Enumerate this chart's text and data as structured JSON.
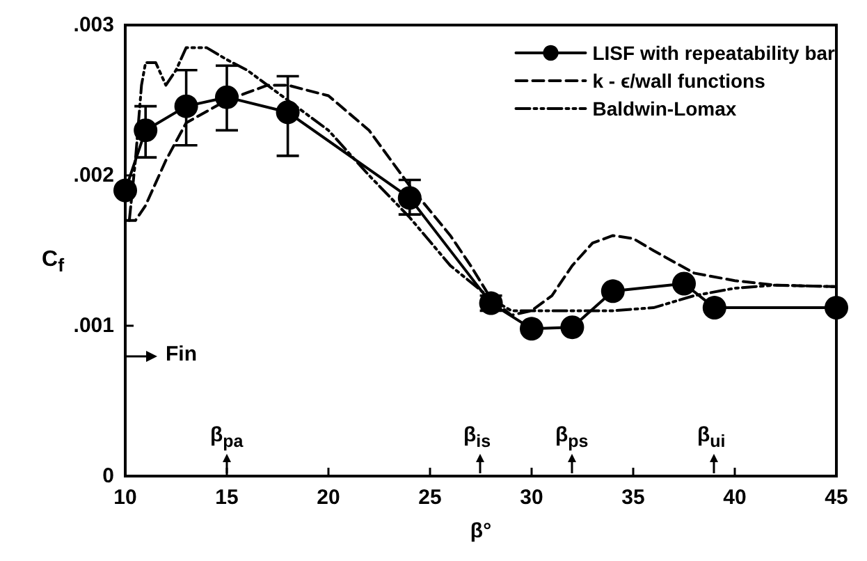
{
  "chart_data": {
    "type": "line",
    "xlabel": "β°",
    "ylabel": "C$_{f}$",
    "xlim": [
      10,
      45
    ],
    "xticks": [
      10,
      15,
      20,
      25,
      30,
      35,
      40,
      45
    ],
    "ylim": [
      0,
      0.003
    ],
    "yticks": [
      0,
      {
        "value": 0.001,
        "label": ".001"
      },
      {
        "value": 0.002,
        "label": ".002"
      },
      {
        "value": 0.003,
        "label": ".003"
      }
    ],
    "grid": false,
    "legend": "top right",
    "series": [
      {
        "name": "LISF with repeatability bar",
        "color": "#000000",
        "marker": "circle",
        "line_style": "solid",
        "x": [
          10,
          11,
          13,
          15,
          18,
          24,
          28,
          30,
          32,
          34,
          37.5,
          39,
          45
        ],
        "values": [
          0.0019,
          0.0023,
          0.00246,
          0.00252,
          0.00242,
          0.00185,
          0.00115,
          0.00098,
          0.00099,
          0.00123,
          0.00128,
          0.00112,
          0.00112
        ],
        "errors": [
          null,
          [
            0.00212,
            0.00246
          ],
          [
            0.0022,
            0.0027
          ],
          [
            0.0023,
            0.00273
          ],
          [
            0.00213,
            0.00266
          ],
          [
            0.00174,
            0.00197
          ],
          [
            0.0011,
            0.0012
          ],
          null,
          null,
          null,
          null,
          null,
          null
        ]
      },
      {
        "name": "k - ϵ/wall functions",
        "color": "#000000",
        "marker": "none",
        "line_style": "dashed",
        "x": [
          10,
          10.5,
          11,
          12,
          13,
          15,
          16,
          17,
          18,
          20,
          22,
          24,
          26,
          27,
          28,
          29,
          30,
          31,
          32,
          33,
          34,
          35,
          36,
          38,
          40,
          42,
          45
        ],
        "values": [
          0.0017,
          0.0017,
          0.0018,
          0.0021,
          0.00235,
          0.0025,
          0.00255,
          0.0026,
          0.0026,
          0.00253,
          0.0023,
          0.00193,
          0.0016,
          0.0014,
          0.00118,
          0.00107,
          0.0011,
          0.0012,
          0.0014,
          0.00155,
          0.0016,
          0.00158,
          0.0015,
          0.00135,
          0.0013,
          0.00127,
          0.00126
        ]
      },
      {
        "name": "Baldwin-Lomax",
        "color": "#000000",
        "marker": "none",
        "line_style": "dashdot",
        "x": [
          10.2,
          10.5,
          10.8,
          11,
          11.5,
          12,
          12.5,
          13,
          14,
          15,
          16,
          17,
          18,
          20,
          22,
          24,
          26,
          28,
          29,
          30,
          32,
          34,
          36,
          38,
          40,
          42,
          45
        ],
        "values": [
          0.0017,
          0.0021,
          0.0026,
          0.00275,
          0.00275,
          0.0026,
          0.0027,
          0.00285,
          0.00285,
          0.00277,
          0.0027,
          0.0026,
          0.0025,
          0.0023,
          0.002,
          0.00172,
          0.0014,
          0.00118,
          0.0011,
          0.0011,
          0.0011,
          0.0011,
          0.00112,
          0.0012,
          0.00125,
          0.00127,
          0.00126
        ]
      }
    ],
    "annotations": [
      "β$_{pa}$",
      "β$_{is}$",
      "β$_{ps}$",
      "β$_{ui}$"
    ],
    "ref_lines": [
      {
        "axis": "y",
        "value": 0.0008,
        "label": "Fin"
      }
    ]
  }
}
